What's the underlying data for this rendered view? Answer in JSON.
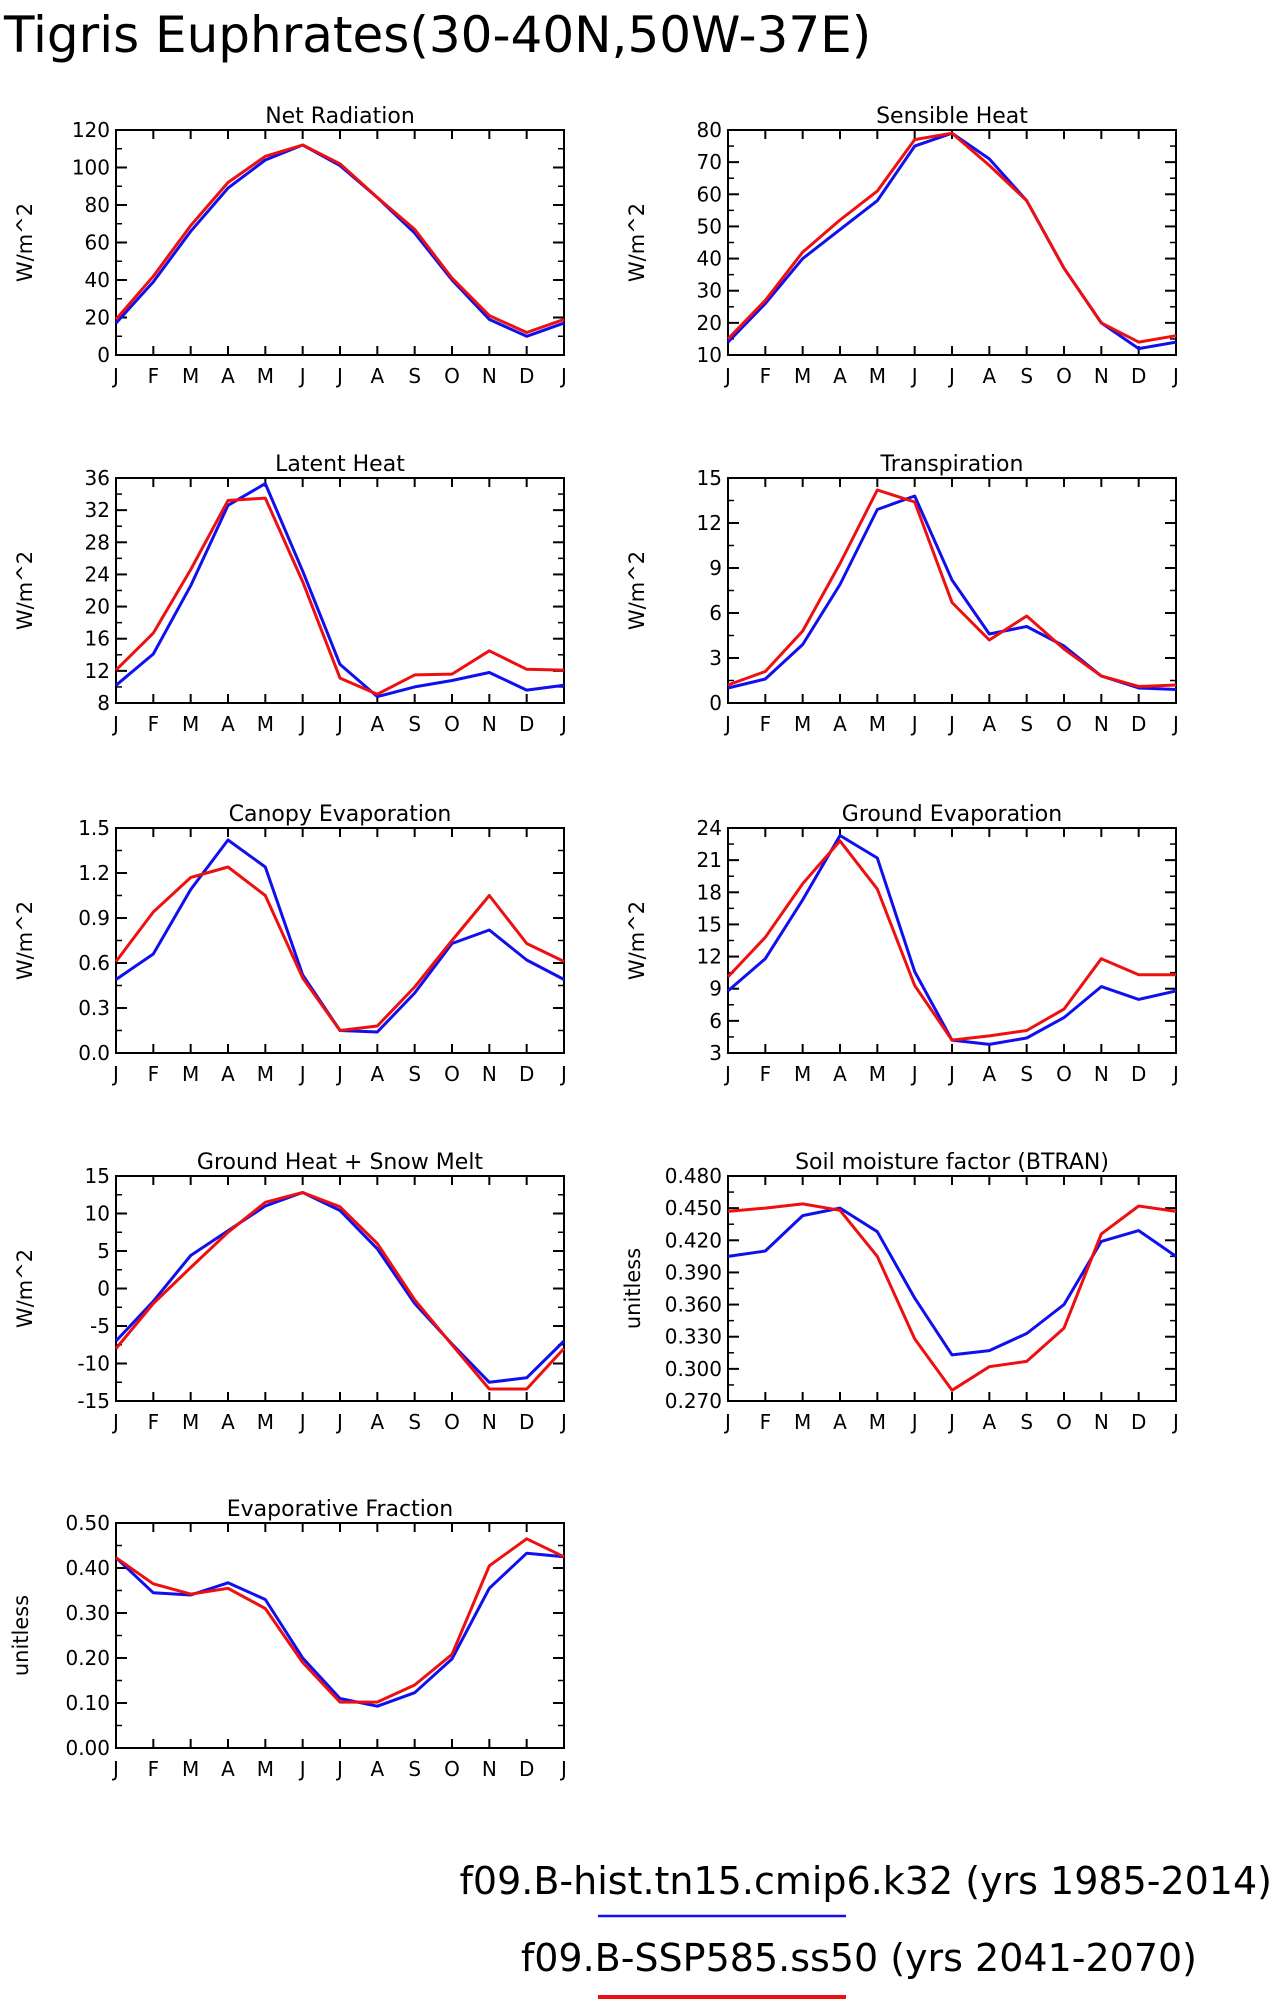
{
  "page": {
    "title": "Tigris Euphrates(30-40N,50W-37E)"
  },
  "colors": {
    "series_blue": "#1010ee",
    "series_red": "#ee1010",
    "axis": "#000000"
  },
  "legend": [
    {
      "label": "f09.B-hist.tn15.cmip6.k32 (yrs 1985-2014)",
      "color": "#1010ee"
    },
    {
      "label": "f09.B-SSP585.ss50 (yrs 2041-2070)",
      "color": "#ee1010"
    }
  ],
  "chart_data": [
    {
      "type": "line",
      "title": "Net Radiation",
      "ylabel": "W/m^2",
      "categories": [
        "J",
        "F",
        "M",
        "A",
        "M",
        "J",
        "J",
        "A",
        "S",
        "O",
        "N",
        "D",
        "J"
      ],
      "ylim": [
        0,
        120
      ],
      "yticks": [
        0,
        20,
        40,
        60,
        80,
        100,
        120
      ],
      "yticklabels": [
        "0",
        "20",
        "40",
        "60",
        "80",
        "100",
        "120"
      ],
      "series": [
        {
          "color": "#1010ee",
          "values": [
            17,
            39,
            66,
            89,
            104,
            112,
            101,
            84,
            65,
            40,
            19,
            10,
            17
          ]
        },
        {
          "color": "#ee1010",
          "values": [
            19,
            42,
            69,
            92,
            106,
            112,
            102,
            84,
            67,
            41,
            21,
            12,
            19
          ]
        }
      ]
    },
    {
      "type": "line",
      "title": "Sensible Heat",
      "ylabel": "W/m^2",
      "categories": [
        "J",
        "F",
        "M",
        "A",
        "M",
        "J",
        "J",
        "A",
        "S",
        "O",
        "N",
        "D",
        "J"
      ],
      "ylim": [
        10,
        80
      ],
      "yticks": [
        10,
        20,
        30,
        40,
        50,
        60,
        70,
        80
      ],
      "yticklabels": [
        "10",
        "20",
        "30",
        "40",
        "50",
        "60",
        "70",
        "80"
      ],
      "series": [
        {
          "color": "#1010ee",
          "values": [
            14,
            26,
            40,
            49,
            58,
            75,
            79,
            71,
            58,
            37,
            20,
            12,
            14
          ]
        },
        {
          "color": "#ee1010",
          "values": [
            15,
            27,
            42,
            52,
            61,
            77,
            79,
            69,
            58,
            37,
            20,
            14,
            16
          ]
        }
      ]
    },
    {
      "type": "line",
      "title": "Latent Heat",
      "ylabel": "W/m^2",
      "categories": [
        "J",
        "F",
        "M",
        "A",
        "M",
        "J",
        "J",
        "A",
        "S",
        "O",
        "N",
        "D",
        "J"
      ],
      "ylim": [
        8,
        36
      ],
      "yticks": [
        8,
        12,
        16,
        20,
        24,
        28,
        32,
        36
      ],
      "yticklabels": [
        "8",
        "12",
        "16",
        "20",
        "24",
        "28",
        "32",
        "36"
      ],
      "series": [
        {
          "color": "#1010ee",
          "values": [
            10.2,
            14.1,
            22.6,
            32.6,
            35.3,
            24.4,
            12.8,
            8.8,
            10.0,
            10.8,
            11.8,
            9.6,
            10.2
          ]
        },
        {
          "color": "#ee1010",
          "values": [
            12.1,
            16.7,
            24.6,
            33.2,
            33.5,
            23.1,
            11.1,
            9.1,
            11.5,
            11.6,
            14.5,
            12.2,
            12.1
          ]
        }
      ]
    },
    {
      "type": "line",
      "title": "Transpiration",
      "ylabel": "W/m^2",
      "categories": [
        "J",
        "F",
        "M",
        "A",
        "M",
        "J",
        "J",
        "A",
        "S",
        "O",
        "N",
        "D",
        "J"
      ],
      "ylim": [
        0,
        15
      ],
      "yticks": [
        0,
        3,
        6,
        9,
        12,
        15
      ],
      "yticklabels": [
        "0",
        "3",
        "6",
        "9",
        "12",
        "15"
      ],
      "series": [
        {
          "color": "#1010ee",
          "values": [
            1.0,
            1.6,
            3.9,
            7.9,
            12.9,
            13.8,
            8.2,
            4.6,
            5.1,
            3.8,
            1.8,
            1.0,
            0.9
          ]
        },
        {
          "color": "#ee1010",
          "values": [
            1.2,
            2.1,
            4.8,
            9.3,
            14.2,
            13.4,
            6.7,
            4.2,
            5.8,
            3.6,
            1.8,
            1.1,
            1.2
          ]
        }
      ]
    },
    {
      "type": "line",
      "title": "Canopy Evaporation",
      "ylabel": "W/m^2",
      "categories": [
        "J",
        "F",
        "M",
        "A",
        "M",
        "J",
        "J",
        "A",
        "S",
        "O",
        "N",
        "D",
        "J"
      ],
      "ylim": [
        0.0,
        1.5
      ],
      "yticks": [
        0.0,
        0.3,
        0.6,
        0.9,
        1.2,
        1.5
      ],
      "yticklabels": [
        "0.0",
        "0.3",
        "0.6",
        "0.9",
        "1.2",
        "1.5"
      ],
      "series": [
        {
          "color": "#1010ee",
          "values": [
            0.49,
            0.66,
            1.09,
            1.42,
            1.24,
            0.52,
            0.15,
            0.14,
            0.4,
            0.73,
            0.82,
            0.62,
            0.49
          ]
        },
        {
          "color": "#ee1010",
          "values": [
            0.61,
            0.94,
            1.17,
            1.24,
            1.05,
            0.5,
            0.15,
            0.18,
            0.44,
            0.75,
            1.05,
            0.73,
            0.61
          ]
        }
      ]
    },
    {
      "type": "line",
      "title": "Ground Evaporation",
      "ylabel": "W/m^2",
      "categories": [
        "J",
        "F",
        "M",
        "A",
        "M",
        "J",
        "J",
        "A",
        "S",
        "O",
        "N",
        "D",
        "J"
      ],
      "ylim": [
        3,
        24
      ],
      "yticks": [
        3,
        6,
        9,
        12,
        15,
        18,
        21,
        24
      ],
      "yticklabels": [
        "3",
        "6",
        "9",
        "12",
        "15",
        "18",
        "21",
        "24"
      ],
      "series": [
        {
          "color": "#1010ee",
          "values": [
            8.8,
            11.8,
            17.3,
            23.3,
            21.2,
            10.6,
            4.2,
            3.8,
            4.4,
            6.3,
            9.2,
            8.0,
            8.8
          ]
        },
        {
          "color": "#ee1010",
          "values": [
            10.1,
            13.8,
            18.8,
            22.8,
            18.3,
            9.3,
            4.2,
            4.6,
            5.1,
            7.1,
            11.8,
            10.3,
            10.3
          ]
        }
      ]
    },
    {
      "type": "line",
      "title": "Ground Heat + Snow Melt",
      "ylabel": "W/m^2",
      "categories": [
        "J",
        "F",
        "M",
        "A",
        "M",
        "J",
        "J",
        "A",
        "S",
        "O",
        "N",
        "D",
        "J"
      ],
      "ylim": [
        -15,
        15
      ],
      "yticks": [
        -15,
        -10,
        -5,
        0,
        5,
        10,
        15
      ],
      "yticklabels": [
        "-15",
        "-10",
        "-5",
        "0",
        "5",
        "10",
        "15"
      ],
      "series": [
        {
          "color": "#1010ee",
          "values": [
            -7.0,
            -1.7,
            4.4,
            7.7,
            11.0,
            12.8,
            10.4,
            5.3,
            -2.0,
            -7.4,
            -12.5,
            -11.9,
            -7.0
          ]
        },
        {
          "color": "#ee1010",
          "values": [
            -8.0,
            -2.0,
            2.8,
            7.5,
            11.5,
            12.8,
            10.9,
            6.0,
            -1.5,
            -7.5,
            -13.4,
            -13.4,
            -8.0
          ]
        }
      ]
    },
    {
      "type": "line",
      "title": "Soil moisture factor (BTRAN)",
      "ylabel": "unitless",
      "categories": [
        "J",
        "F",
        "M",
        "A",
        "M",
        "J",
        "J",
        "A",
        "S",
        "O",
        "N",
        "D",
        "J"
      ],
      "ylim": [
        0.27,
        0.48
      ],
      "yticks": [
        0.27,
        0.3,
        0.33,
        0.36,
        0.39,
        0.42,
        0.45,
        0.48
      ],
      "yticklabels": [
        "0.270",
        "0.300",
        "0.330",
        "0.360",
        "0.390",
        "0.420",
        "0.450",
        "0.480"
      ],
      "series": [
        {
          "color": "#1010ee",
          "values": [
            0.405,
            0.41,
            0.443,
            0.45,
            0.428,
            0.366,
            0.313,
            0.317,
            0.333,
            0.36,
            0.419,
            0.429,
            0.405
          ]
        },
        {
          "color": "#ee1010",
          "values": [
            0.447,
            0.45,
            0.454,
            0.448,
            0.405,
            0.328,
            0.28,
            0.302,
            0.307,
            0.338,
            0.426,
            0.452,
            0.447
          ]
        }
      ]
    },
    {
      "type": "line",
      "title": "Evaporative Fraction",
      "ylabel": "unitless",
      "categories": [
        "J",
        "F",
        "M",
        "A",
        "M",
        "J",
        "J",
        "A",
        "S",
        "O",
        "N",
        "D",
        "J"
      ],
      "ylim": [
        0.0,
        0.5
      ],
      "yticks": [
        0.0,
        0.1,
        0.2,
        0.3,
        0.4,
        0.5
      ],
      "yticklabels": [
        "0.00",
        "0.10",
        "0.20",
        "0.30",
        "0.40",
        "0.50"
      ],
      "series": [
        {
          "color": "#1010ee",
          "values": [
            0.423,
            0.345,
            0.34,
            0.367,
            0.33,
            0.2,
            0.11,
            0.093,
            0.123,
            0.198,
            0.355,
            0.433,
            0.425
          ]
        },
        {
          "color": "#ee1010",
          "values": [
            0.423,
            0.365,
            0.342,
            0.355,
            0.31,
            0.19,
            0.102,
            0.102,
            0.14,
            0.208,
            0.405,
            0.465,
            0.425
          ]
        }
      ]
    }
  ]
}
